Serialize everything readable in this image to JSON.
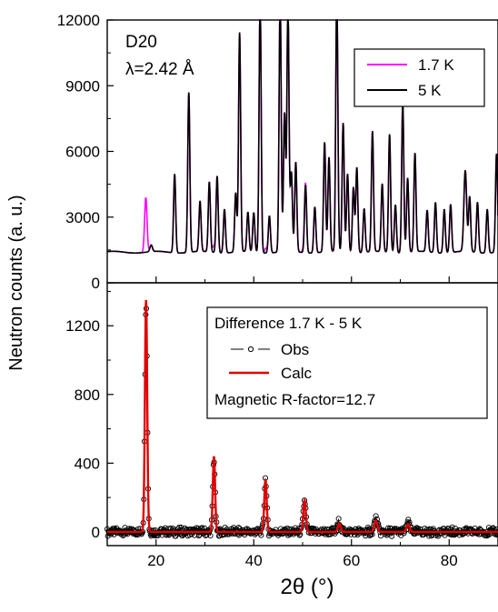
{
  "chart_data": [
    {
      "type": "line",
      "panel": "top",
      "annotations": [
        "D20",
        "λ=2.42 Å"
      ],
      "xlim": [
        10,
        90
      ],
      "ylim": [
        0,
        12000
      ],
      "yticks": [
        "0",
        "3000",
        "6000",
        "9000",
        "12000"
      ],
      "legend_position": "top-right",
      "baseline": 1400,
      "colors": {
        "series_1": "#ff00ff",
        "series_2": "#000000"
      },
      "series": [
        {
          "name": "1.7 K",
          "peaks": [
            [
              17.9,
              2500,
              0.35
            ],
            [
              31.8,
              300,
              0.35
            ],
            [
              42.5,
              220,
              0.35
            ],
            [
              50.3,
              180,
              0.4
            ]
          ]
        },
        {
          "name": "5 K",
          "peaks": [
            [
              19.0,
              300,
              0.35
            ],
            [
              23.8,
              3600,
              0.3
            ],
            [
              26.7,
              7300,
              0.3
            ],
            [
              29.0,
              2300,
              0.3
            ],
            [
              30.9,
              3200,
              0.3
            ],
            [
              32.5,
              3500,
              0.3
            ],
            [
              34.0,
              2000,
              0.3
            ],
            [
              36.3,
              2700,
              0.3
            ],
            [
              37.1,
              10000,
              0.3
            ],
            [
              38.8,
              1800,
              0.3
            ],
            [
              40.0,
              1800,
              0.3
            ],
            [
              41.3,
              11600,
              0.3
            ],
            [
              43.2,
              1700,
              0.3
            ],
            [
              45.4,
              11700,
              0.3
            ],
            [
              46.3,
              6300,
              0.3
            ],
            [
              47.0,
              11300,
              0.3
            ],
            [
              47.7,
              3600,
              0.3
            ],
            [
              48.6,
              4100,
              0.3
            ],
            [
              50.6,
              3100,
              0.3
            ],
            [
              52.5,
              2100,
              0.3
            ],
            [
              54.5,
              5000,
              0.3
            ],
            [
              55.4,
              4300,
              0.3
            ],
            [
              57.0,
              12000,
              0.3
            ],
            [
              58.3,
              5900,
              0.3
            ],
            [
              59.2,
              3600,
              0.3
            ],
            [
              60.4,
              3000,
              0.3
            ],
            [
              61.1,
              3900,
              0.3
            ],
            [
              62.6,
              2000,
              0.3
            ],
            [
              64.3,
              5500,
              0.3
            ],
            [
              66.3,
              3100,
              0.3
            ],
            [
              67.8,
              5400,
              0.3
            ],
            [
              69.0,
              2200,
              0.3
            ],
            [
              70.5,
              6900,
              0.3
            ],
            [
              71.5,
              3400,
              0.3
            ],
            [
              73.0,
              4500,
              0.3
            ],
            [
              75.5,
              1900,
              0.3
            ],
            [
              77.2,
              2300,
              0.3
            ],
            [
              79.0,
              2000,
              0.3
            ],
            [
              80.3,
              2200,
              0.3
            ],
            [
              83.3,
              3700,
              0.4
            ],
            [
              84.2,
              2500,
              0.3
            ],
            [
              85.8,
              2300,
              0.3
            ],
            [
              87.8,
              2000,
              0.3
            ],
            [
              89.7,
              4500,
              0.3
            ]
          ]
        }
      ]
    },
    {
      "type": "line",
      "panel": "bottom",
      "xlabel": "2θ (°)",
      "ylabel": "Neutron counts (a. u.)",
      "xlim": [
        10,
        90
      ],
      "ylim": [
        -80,
        1450
      ],
      "xticks": [
        "20",
        "40",
        "60",
        "80"
      ],
      "yticks": [
        "0",
        "400",
        "800",
        "1200"
      ],
      "legend_position": "top-right",
      "legend_title": "Difference 1.7 K - 5 K",
      "annotations": [
        "Magnetic R-factor=12.7"
      ],
      "colors": {
        "obs": "#000000",
        "calc": "#e00000"
      },
      "series": [
        {
          "name": "Obs",
          "marker": "circle",
          "peaks": [
            [
              17.95,
              1350,
              0.33
            ],
            [
              31.85,
              420,
              0.33
            ],
            [
              42.4,
              310,
              0.35
            ],
            [
              50.4,
              180,
              0.38
            ],
            [
              57.5,
              60,
              0.4
            ],
            [
              65.0,
              75,
              0.45
            ],
            [
              71.6,
              55,
              0.45
            ]
          ]
        },
        {
          "name": "Calc",
          "peaks": [
            [
              17.95,
              1350,
              0.33
            ],
            [
              31.85,
              440,
              0.33
            ],
            [
              42.4,
              305,
              0.35
            ],
            [
              50.4,
              185,
              0.38
            ],
            [
              57.5,
              50,
              0.4
            ],
            [
              65.0,
              65,
              0.45
            ],
            [
              71.6,
              45,
              0.45
            ]
          ]
        }
      ]
    }
  ]
}
